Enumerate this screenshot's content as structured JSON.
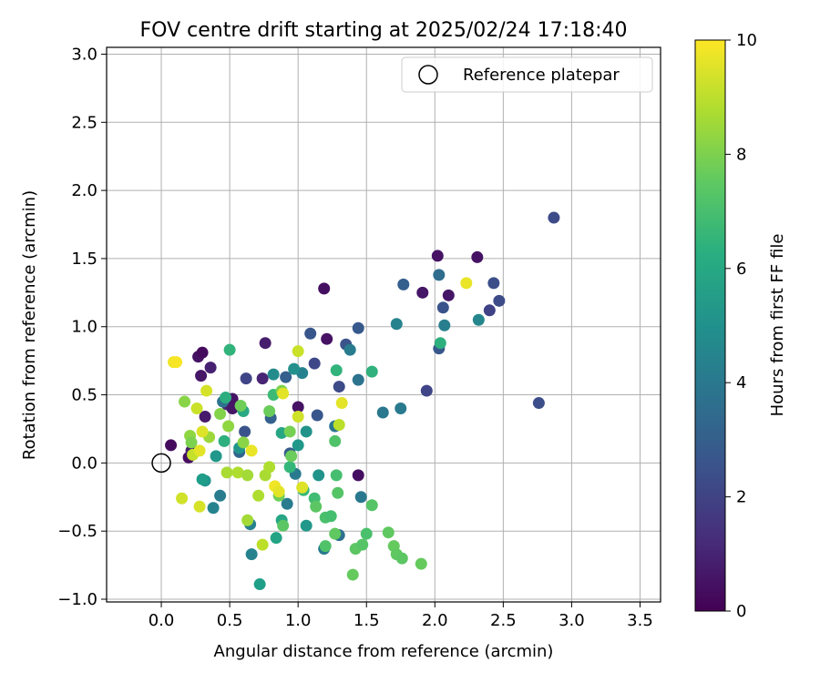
{
  "chart_data": {
    "type": "scatter",
    "title": "FOV centre drift starting at 2025/02/24 17:18:40",
    "xlabel": "Angular distance from reference (arcmin)",
    "ylabel": "Rotation from reference (arcmin)",
    "xlim": [
      -0.4,
      3.65
    ],
    "ylim": [
      -1.02,
      3.05
    ],
    "xticks": [
      0.0,
      0.5,
      1.0,
      1.5,
      2.0,
      2.5,
      3.0,
      3.5
    ],
    "xtick_labels": [
      "0.0",
      "0.5",
      "1.0",
      "1.5",
      "2.0",
      "2.5",
      "3.0",
      "3.5"
    ],
    "yticks": [
      -1.0,
      -0.5,
      0.0,
      0.5,
      1.0,
      1.5,
      2.0,
      2.5,
      3.0
    ],
    "ytick_labels": [
      "−1.0",
      "−0.5",
      "0.0",
      "0.5",
      "1.0",
      "1.5",
      "2.0",
      "2.5",
      "3.0"
    ],
    "grid": true,
    "legend": {
      "placement": "top-right",
      "entries": [
        "Reference platepar"
      ]
    },
    "reference_point": {
      "x": 0.0,
      "y": 0.0
    },
    "colorbar": {
      "label": "Hours from first FF file",
      "colormap": "viridis",
      "range": [
        0,
        10
      ],
      "ticks": [
        0,
        2,
        4,
        6,
        8,
        10
      ],
      "tick_labels": [
        "0",
        "2",
        "4",
        "6",
        "8",
        "10"
      ]
    },
    "points": [
      {
        "x": 0.07,
        "y": 0.13,
        "c": 0.3
      },
      {
        "x": 0.2,
        "y": 0.04,
        "c": 0.4
      },
      {
        "x": 0.22,
        "y": 0.09,
        "c": 0.8
      },
      {
        "x": 0.27,
        "y": 0.78,
        "c": 0.5
      },
      {
        "x": 0.3,
        "y": 0.81,
        "c": 0.3
      },
      {
        "x": 0.29,
        "y": 0.64,
        "c": 0.6
      },
      {
        "x": 0.36,
        "y": 0.7,
        "c": 0.9
      },
      {
        "x": 0.32,
        "y": 0.34,
        "c": 0.7
      },
      {
        "x": 0.48,
        "y": 0.43,
        "c": 1.1
      },
      {
        "x": 0.52,
        "y": 0.47,
        "c": 0.5
      },
      {
        "x": 0.52,
        "y": 0.4,
        "c": 0.6
      },
      {
        "x": 0.76,
        "y": 0.88,
        "c": 0.8
      },
      {
        "x": 0.74,
        "y": 0.62,
        "c": 1.0
      },
      {
        "x": 1.0,
        "y": 0.41,
        "c": 0.5
      },
      {
        "x": 1.19,
        "y": 1.28,
        "c": 0.4
      },
      {
        "x": 1.21,
        "y": 0.91,
        "c": 0.5
      },
      {
        "x": 1.44,
        "y": -0.09,
        "c": 0.4
      },
      {
        "x": 1.91,
        "y": 1.25,
        "c": 0.6
      },
      {
        "x": 2.02,
        "y": 1.52,
        "c": 0.5
      },
      {
        "x": 2.1,
        "y": 1.23,
        "c": 0.6
      },
      {
        "x": 2.31,
        "y": 1.51,
        "c": 0.5
      },
      {
        "x": 2.87,
        "y": 1.8,
        "c": 2.3
      },
      {
        "x": 2.76,
        "y": 0.44,
        "c": 2.4
      },
      {
        "x": 2.47,
        "y": 1.19,
        "c": 2.3
      },
      {
        "x": 2.43,
        "y": 1.32,
        "c": 2.4
      },
      {
        "x": 2.4,
        "y": 1.12,
        "c": 2.0
      },
      {
        "x": 2.06,
        "y": 1.14,
        "c": 2.6
      },
      {
        "x": 2.03,
        "y": 0.84,
        "c": 2.7
      },
      {
        "x": 1.94,
        "y": 0.53,
        "c": 2.1
      },
      {
        "x": 1.77,
        "y": 1.31,
        "c": 3.0
      },
      {
        "x": 1.44,
        "y": 0.99,
        "c": 2.8
      },
      {
        "x": 1.35,
        "y": 0.87,
        "c": 2.6
      },
      {
        "x": 1.12,
        "y": 0.73,
        "c": 2.2
      },
      {
        "x": 1.09,
        "y": 0.95,
        "c": 2.7
      },
      {
        "x": 1.3,
        "y": 0.56,
        "c": 2.3
      },
      {
        "x": 1.14,
        "y": 0.35,
        "c": 2.7
      },
      {
        "x": 0.62,
        "y": 0.62,
        "c": 2.1
      },
      {
        "x": 0.61,
        "y": 0.23,
        "c": 2.6
      },
      {
        "x": 0.57,
        "y": 0.08,
        "c": 3.2
      },
      {
        "x": 0.91,
        "y": 0.63,
        "c": 3.0
      },
      {
        "x": 0.8,
        "y": 0.33,
        "c": 3.1
      },
      {
        "x": 0.94,
        "y": 0.07,
        "c": 2.9
      },
      {
        "x": 0.45,
        "y": 0.45,
        "c": 3.8
      },
      {
        "x": 0.38,
        "y": -0.33,
        "c": 4.5
      },
      {
        "x": 0.43,
        "y": -0.24,
        "c": 4.2
      },
      {
        "x": 0.65,
        "y": -0.45,
        "c": 4.4
      },
      {
        "x": 0.66,
        "y": -0.67,
        "c": 4.5
      },
      {
        "x": 0.92,
        "y": -0.3,
        "c": 4.2
      },
      {
        "x": 0.98,
        "y": -0.08,
        "c": 4.1
      },
      {
        "x": 1.19,
        "y": -0.63,
        "c": 4.1
      },
      {
        "x": 1.3,
        "y": -0.53,
        "c": 3.7
      },
      {
        "x": 1.46,
        "y": -0.25,
        "c": 4.0
      },
      {
        "x": 1.44,
        "y": 0.61,
        "c": 3.8
      },
      {
        "x": 1.27,
        "y": 0.27,
        "c": 3.9
      },
      {
        "x": 1.62,
        "y": 0.37,
        "c": 4.0
      },
      {
        "x": 1.75,
        "y": 0.4,
        "c": 4.1
      },
      {
        "x": 1.72,
        "y": 1.02,
        "c": 4.5
      },
      {
        "x": 2.03,
        "y": 1.38,
        "c": 3.5
      },
      {
        "x": 2.07,
        "y": 1.01,
        "c": 4.3
      },
      {
        "x": 2.32,
        "y": 1.05,
        "c": 4.6
      },
      {
        "x": 1.38,
        "y": 0.83,
        "c": 4.2
      },
      {
        "x": 1.03,
        "y": 0.66,
        "c": 4.4
      },
      {
        "x": 0.82,
        "y": 0.65,
        "c": 4.8
      },
      {
        "x": 0.97,
        "y": 0.69,
        "c": 5.0
      },
      {
        "x": 0.57,
        "y": 0.11,
        "c": 5.2
      },
      {
        "x": 0.4,
        "y": 0.05,
        "c": 5.3
      },
      {
        "x": 0.32,
        "y": -0.13,
        "c": 5.2
      },
      {
        "x": 0.3,
        "y": -0.12,
        "c": 5.5
      },
      {
        "x": 1.06,
        "y": 0.23,
        "c": 5.1
      },
      {
        "x": 1.0,
        "y": 0.13,
        "c": 5.3
      },
      {
        "x": 0.88,
        "y": 0.22,
        "c": 5.9
      },
      {
        "x": 0.72,
        "y": -0.89,
        "c": 5.6
      },
      {
        "x": 0.84,
        "y": -0.55,
        "c": 5.8
      },
      {
        "x": 0.88,
        "y": -0.42,
        "c": 5.9
      },
      {
        "x": 1.06,
        "y": -0.46,
        "c": 5.3
      },
      {
        "x": 1.15,
        "y": -0.09,
        "c": 5.1
      },
      {
        "x": 2.04,
        "y": 0.88,
        "c": 6.3
      },
      {
        "x": 1.54,
        "y": 0.67,
        "c": 6.4
      },
      {
        "x": 1.28,
        "y": 0.68,
        "c": 6.5
      },
      {
        "x": 0.5,
        "y": 0.83,
        "c": 6.5
      },
      {
        "x": 0.47,
        "y": 0.48,
        "c": 6.2
      },
      {
        "x": 0.6,
        "y": 0.38,
        "c": 6.0
      },
      {
        "x": 0.46,
        "y": 0.16,
        "c": 6.3
      },
      {
        "x": 0.82,
        "y": 0.5,
        "c": 6.8
      },
      {
        "x": 0.94,
        "y": -0.03,
        "c": 6.6
      },
      {
        "x": 1.04,
        "y": -0.2,
        "c": 6.7
      },
      {
        "x": 1.12,
        "y": -0.26,
        "c": 6.9
      },
      {
        "x": 1.2,
        "y": -0.4,
        "c": 7.1
      },
      {
        "x": 1.24,
        "y": -0.39,
        "c": 7.0
      },
      {
        "x": 1.2,
        "y": -0.61,
        "c": 7.2
      },
      {
        "x": 1.28,
        "y": -0.09,
        "c": 7.0
      },
      {
        "x": 1.29,
        "y": -0.22,
        "c": 7.3
      },
      {
        "x": 1.27,
        "y": 0.16,
        "c": 7.2
      },
      {
        "x": 1.27,
        "y": -0.52,
        "c": 7.5
      },
      {
        "x": 1.13,
        "y": -0.32,
        "c": 7.4
      },
      {
        "x": 1.5,
        "y": -0.52,
        "c": 7.1
      },
      {
        "x": 1.54,
        "y": -0.31,
        "c": 7.3
      },
      {
        "x": 1.42,
        "y": -0.63,
        "c": 7.4
      },
      {
        "x": 1.47,
        "y": -0.6,
        "c": 7.3
      },
      {
        "x": 1.66,
        "y": -0.51,
        "c": 7.5
      },
      {
        "x": 1.7,
        "y": -0.61,
        "c": 7.6
      },
      {
        "x": 1.72,
        "y": -0.67,
        "c": 7.5
      },
      {
        "x": 1.76,
        "y": -0.7,
        "c": 7.4
      },
      {
        "x": 1.9,
        "y": -0.74,
        "c": 7.6
      },
      {
        "x": 1.4,
        "y": -0.82,
        "c": 7.6
      },
      {
        "x": 0.89,
        "y": -0.46,
        "c": 7.4
      },
      {
        "x": 0.86,
        "y": -0.24,
        "c": 7.8
      },
      {
        "x": 0.79,
        "y": 0.38,
        "c": 7.7
      },
      {
        "x": 0.88,
        "y": 0.53,
        "c": 8.0
      },
      {
        "x": 0.94,
        "y": 0.23,
        "c": 7.9
      },
      {
        "x": 0.95,
        "y": 0.05,
        "c": 7.7
      },
      {
        "x": 0.58,
        "y": 0.42,
        "c": 7.8
      },
      {
        "x": 0.6,
        "y": 0.15,
        "c": 8.2
      },
      {
        "x": 0.49,
        "y": 0.27,
        "c": 8.3
      },
      {
        "x": 0.43,
        "y": 0.36,
        "c": 8.1
      },
      {
        "x": 0.21,
        "y": 0.2,
        "c": 8.3
      },
      {
        "x": 0.17,
        "y": 0.45,
        "c": 8.2
      },
      {
        "x": 0.22,
        "y": 0.15,
        "c": 8.0
      },
      {
        "x": 0.35,
        "y": 0.19,
        "c": 8.5
      },
      {
        "x": 0.48,
        "y": -0.07,
        "c": 8.7
      },
      {
        "x": 0.56,
        "y": -0.07,
        "c": 8.8
      },
      {
        "x": 0.63,
        "y": -0.09,
        "c": 8.6
      },
      {
        "x": 0.76,
        "y": -0.09,
        "c": 8.7
      },
      {
        "x": 0.79,
        "y": -0.03,
        "c": 8.8
      },
      {
        "x": 0.63,
        "y": -0.42,
        "c": 8.6
      },
      {
        "x": 0.71,
        "y": -0.24,
        "c": 8.8
      },
      {
        "x": 0.74,
        "y": -0.6,
        "c": 9.0
      },
      {
        "x": 0.15,
        "y": -0.26,
        "c": 9.3
      },
      {
        "x": 0.28,
        "y": -0.32,
        "c": 9.4
      },
      {
        "x": 0.23,
        "y": 0.06,
        "c": 9.1
      },
      {
        "x": 0.26,
        "y": 0.4,
        "c": 9.2
      },
      {
        "x": 0.33,
        "y": 0.53,
        "c": 9.4
      },
      {
        "x": 0.3,
        "y": 0.23,
        "c": 9.5
      },
      {
        "x": 0.28,
        "y": 0.09,
        "c": 9.6
      },
      {
        "x": 0.66,
        "y": 0.09,
        "c": 9.7
      },
      {
        "x": 0.83,
        "y": -0.17,
        "c": 9.8
      },
      {
        "x": 0.86,
        "y": -0.21,
        "c": 9.6
      },
      {
        "x": 1.03,
        "y": -0.18,
        "c": 9.5
      },
      {
        "x": 0.89,
        "y": 0.51,
        "c": 9.6
      },
      {
        "x": 1.0,
        "y": 0.34,
        "c": 9.3
      },
      {
        "x": 1.0,
        "y": 0.82,
        "c": 9.2
      },
      {
        "x": 1.3,
        "y": 0.28,
        "c": 9.0
      },
      {
        "x": 1.32,
        "y": 0.44,
        "c": 9.6
      },
      {
        "x": 2.23,
        "y": 1.32,
        "c": 9.7
      },
      {
        "x": 0.09,
        "y": 0.74,
        "c": 9.8
      },
      {
        "x": 0.11,
        "y": 0.74,
        "c": 9.9
      }
    ]
  }
}
